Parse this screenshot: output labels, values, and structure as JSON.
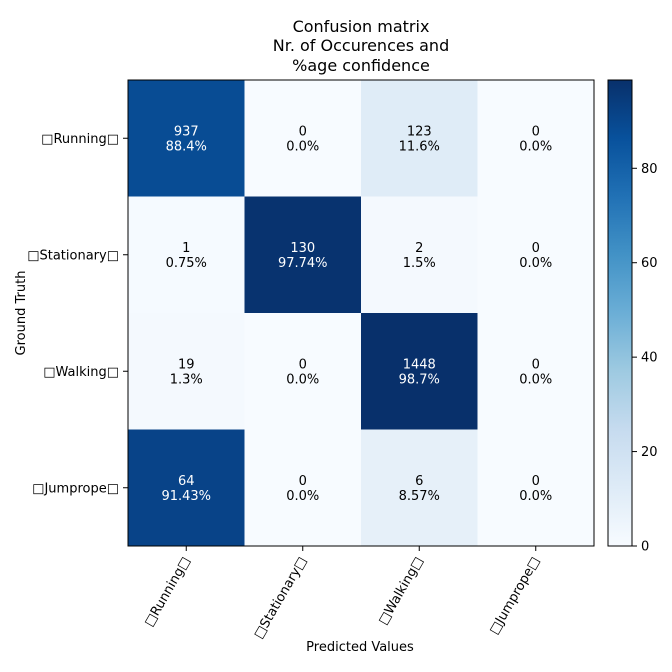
{
  "chart_data": {
    "type": "heatmap",
    "title_lines": [
      "Confusion matrix",
      "Nr. of Occurences and",
      "%age confidence"
    ],
    "xlabel": "Predicted Values",
    "ylabel": "Ground Truth",
    "x_categories": [
      "□Running□",
      "□Stationary□",
      "□Walking□",
      "□Jumprope□"
    ],
    "y_categories": [
      "□Running□",
      "□Stationary□",
      "□Walking□",
      "□Jumprope□"
    ],
    "counts": [
      [
        "937",
        "0",
        "123",
        "0"
      ],
      [
        "1",
        "130",
        "2",
        "0"
      ],
      [
        "19",
        "0",
        "1448",
        "0"
      ],
      [
        "64",
        "0",
        "6",
        "0"
      ]
    ],
    "percent_labels": [
      [
        "88.4%",
        "0.0%",
        "11.6%",
        "0.0%"
      ],
      [
        "0.75%",
        "97.74%",
        "1.5%",
        "0.0%"
      ],
      [
        "1.3%",
        "0.0%",
        "98.7%",
        "0.0%"
      ],
      [
        "91.43%",
        "0.0%",
        "8.57%",
        "0.0%"
      ]
    ],
    "values": [
      [
        88.4,
        0.0,
        11.6,
        0.0
      ],
      [
        0.75,
        97.74,
        1.5,
        0.0
      ],
      [
        1.3,
        0.0,
        98.7,
        0.0
      ],
      [
        91.43,
        0.0,
        8.57,
        0.0
      ]
    ],
    "colorscale": "Blues",
    "color_range": [
      0,
      98.7
    ],
    "colorbar_ticks": [
      "0",
      "20",
      "40",
      "60",
      "80"
    ],
    "colorbar_tick_values": [
      0,
      20,
      40,
      60,
      80
    ]
  }
}
